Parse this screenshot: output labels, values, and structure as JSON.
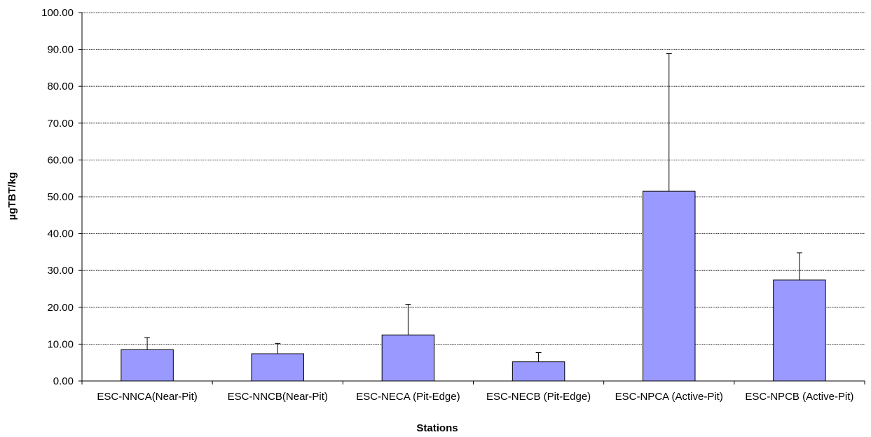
{
  "chart_data": {
    "type": "bar",
    "title": "",
    "xlabel": "Stations",
    "ylabel": "µgTBT/kg",
    "ylim": [
      0,
      100
    ],
    "ytick_step": 10,
    "ytick_labels": [
      "0.00",
      "10.00",
      "20.00",
      "30.00",
      "40.00",
      "50.00",
      "60.00",
      "70.00",
      "80.00",
      "90.00",
      "100.00"
    ],
    "grid": true,
    "legend": "none",
    "categories": [
      "ESC-NNCA(Near-Pit)",
      "ESC-NNCB(Near-Pit)",
      "ESC-NECA (Pit-Edge)",
      "ESC-NECB (Pit-Edge)",
      "ESC-NPCA (Active-Pit)",
      "ESC-NPCB (Active-Pit)"
    ],
    "values": [
      8.5,
      7.4,
      12.5,
      5.2,
      51.5,
      27.4
    ],
    "error_upper": [
      3.3,
      2.8,
      8.3,
      2.5,
      37.4,
      7.4
    ],
    "bar_color": "#9999ff",
    "bar_edge_color": "#000000"
  }
}
